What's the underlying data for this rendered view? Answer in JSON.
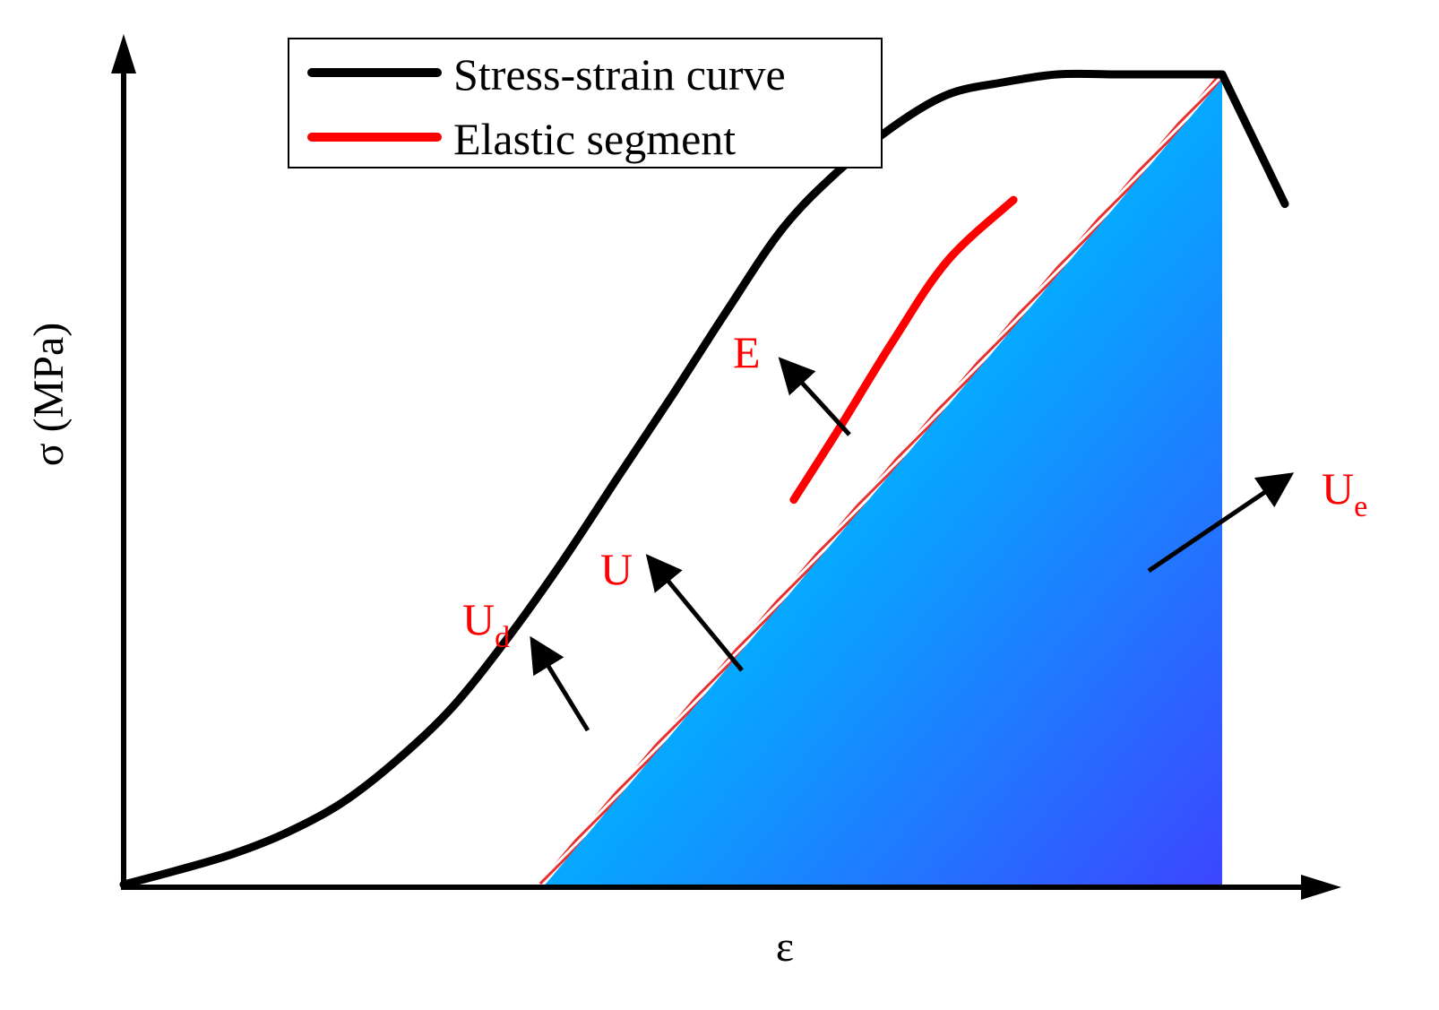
{
  "chart_data": {
    "type": "line",
    "title": "",
    "xlabel": "ε",
    "ylabel": "σ (MPa)",
    "xlim": [
      0,
      10
    ],
    "ylim": [
      0,
      10
    ],
    "grid": false,
    "legend_position": "top-center",
    "series": [
      {
        "name": "Stress-strain curve",
        "color": "#000000",
        "x": [
          0,
          0.5,
          1,
          1.5,
          2,
          2.5,
          3,
          3.5,
          4,
          4.5,
          5,
          5.5,
          6,
          6.5,
          7,
          7.5,
          8,
          8.5,
          9,
          9.3,
          9.5,
          9.7,
          9.85,
          10,
          10.5
        ],
        "y": [
          0,
          0.18,
          0.38,
          0.65,
          1.02,
          1.55,
          2.2,
          3.05,
          4.0,
          5.03,
          6.05,
          7.1,
          8.1,
          8.8,
          9.35,
          9.75,
          9.9,
          10.0,
          10.0,
          9.4,
          9.0,
          8.6,
          8.2,
          7.9,
          7.5
        ]
      },
      {
        "name": "Elastic segment",
        "color": "#ff0000",
        "x": [
          6.1,
          6.5,
          7.0,
          7.5,
          8.1
        ],
        "y": [
          4.75,
          5.6,
          6.7,
          7.7,
          8.45
        ]
      }
    ],
    "unloading_line": {
      "x": [
        3.8,
        10.0
      ],
      "y": [
        0,
        10.0
      ]
    },
    "annotations": [
      {
        "label": "E",
        "color": "#ff0000"
      },
      {
        "label": "U",
        "color": "#ff0000"
      },
      {
        "label": "U",
        "sub": "d",
        "color": "#ff0000"
      },
      {
        "label": "U",
        "sub": "e",
        "color": "#ff0000"
      }
    ],
    "colors": {
      "fill_top": "#00c8ff",
      "fill_bottom": "#3c46ff",
      "curve": "#000000",
      "elastic": "#ff0000",
      "label": "#ff0000"
    }
  }
}
